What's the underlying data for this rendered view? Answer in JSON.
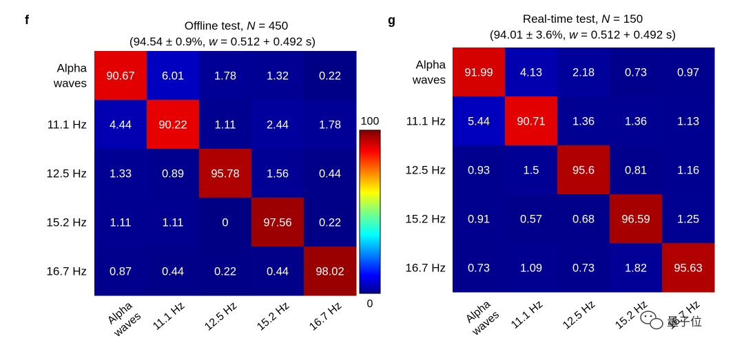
{
  "chart_data": [
    {
      "type": "heatmap",
      "panel_letter": "f",
      "title_parts": [
        "Offline test, ",
        "N",
        " = 450"
      ],
      "subtitle_parts": [
        "(94.54 ± 0.9%, ",
        "w",
        " = 0.512 + 0.492 s)"
      ],
      "row_labels": [
        [
          "Alpha",
          "waves"
        ],
        [
          "11.1 Hz"
        ],
        [
          "12.5 Hz"
        ],
        [
          "15.2 Hz"
        ],
        [
          "16.7 Hz"
        ]
      ],
      "col_labels": [
        [
          "Alpha",
          "waves"
        ],
        [
          "11.1 Hz"
        ],
        [
          "12.5 Hz"
        ],
        [
          "15.2 Hz"
        ],
        [
          "16.7 Hz"
        ]
      ],
      "values": [
        [
          "90.67",
          "6.01",
          "1.78",
          "1.32",
          "0.22"
        ],
        [
          "4.44",
          "90.22",
          "1.11",
          "2.44",
          "1.78"
        ],
        [
          "1.33",
          "0.89",
          "95.78",
          "1.56",
          "0.44"
        ],
        [
          "1.11",
          "1.11",
          "0",
          "97.56",
          "0.22"
        ],
        [
          "0.87",
          "0.44",
          "0.22",
          "0.44",
          "98.02"
        ]
      ]
    },
    {
      "type": "heatmap",
      "panel_letter": "g",
      "title_parts": [
        "Real-time test, ",
        "N",
        " = 150"
      ],
      "subtitle_parts": [
        "(94.01 ± 3.6%, ",
        "w",
        " = 0.512 + 0.492 s)"
      ],
      "row_labels": [
        [
          "Alpha",
          "waves"
        ],
        [
          "11.1 Hz"
        ],
        [
          "12.5 Hz"
        ],
        [
          "15.2 Hz"
        ],
        [
          "16.7 Hz"
        ]
      ],
      "col_labels": [
        [
          "Alpha",
          "waves"
        ],
        [
          "11.1 Hz"
        ],
        [
          "12.5 Hz"
        ],
        [
          "15.2 Hz"
        ],
        [
          "16.7 Hz"
        ]
      ],
      "values": [
        [
          "91.99",
          "4.13",
          "2.18",
          "0.73",
          "0.97"
        ],
        [
          "5.44",
          "90.71",
          "1.36",
          "1.36",
          "1.13"
        ],
        [
          "0.93",
          "1.5",
          "95.6",
          "0.81",
          "1.16"
        ],
        [
          "0.91",
          "0.57",
          "0.68",
          "96.59",
          "1.25"
        ],
        [
          "0.73",
          "1.09",
          "0.73",
          "1.82",
          "95.63"
        ]
      ]
    }
  ],
  "colorbar": {
    "min_label": "0",
    "max_label": "100",
    "min": 0,
    "max": 100,
    "colormap": "jet"
  },
  "watermark": {
    "text": "量子位",
    "icon": "wechat-icon"
  }
}
